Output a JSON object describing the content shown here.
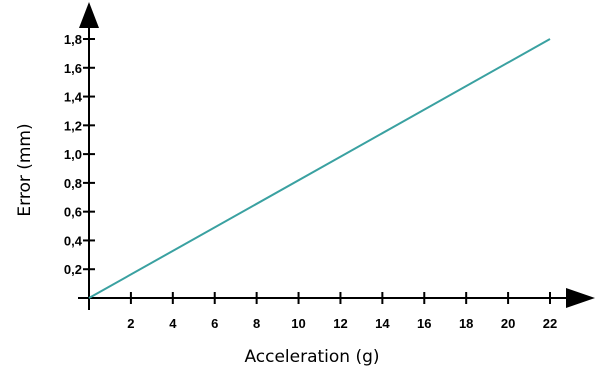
{
  "chart_data": {
    "type": "line",
    "xlabel": "Acceleration (g)",
    "ylabel": "Error (mm)",
    "xlim": [
      0,
      22
    ],
    "ylim": [
      0,
      1.8
    ],
    "x_ticks": [
      2,
      4,
      6,
      8,
      10,
      12,
      14,
      16,
      18,
      20,
      22
    ],
    "x_tick_labels": [
      "2",
      "4",
      "6",
      "8",
      "10",
      "12",
      "14",
      "16",
      "18",
      "20",
      "22"
    ],
    "y_ticks": [
      0.2,
      0.4,
      0.6,
      0.8,
      1.0,
      1.2,
      1.4,
      1.6,
      1.8
    ],
    "y_tick_labels": [
      "0,2",
      "0,4",
      "0,6",
      "0,8",
      "1,0",
      "1,2",
      "1,4",
      "1,6",
      "1,8"
    ],
    "grid": false,
    "series": [
      {
        "color": "#3aa1a1",
        "x": [
          0,
          22
        ],
        "y": [
          0,
          1.8
        ]
      }
    ]
  }
}
